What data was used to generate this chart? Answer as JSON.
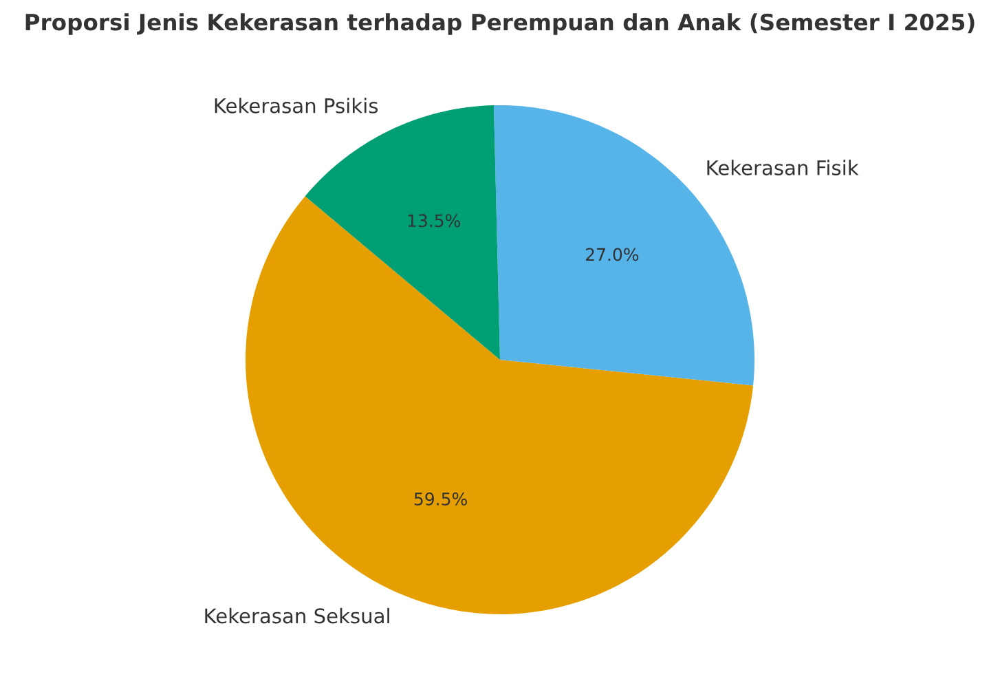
{
  "chart_data": {
    "type": "pie",
    "title": "Proporsi Jenis Kekerasan terhadap Perempuan dan Anak (Semester I 2025)",
    "categories": [
      "Kekerasan Seksual",
      "Kekerasan Fisik",
      "Kekerasan Psikis"
    ],
    "values": [
      59.5,
      27.0,
      13.5
    ],
    "value_labels": [
      "59.5%",
      "27.0%",
      "13.5%"
    ],
    "colors": [
      "#e69f00",
      "#56b4e9",
      "#009e73"
    ],
    "legend": false
  }
}
